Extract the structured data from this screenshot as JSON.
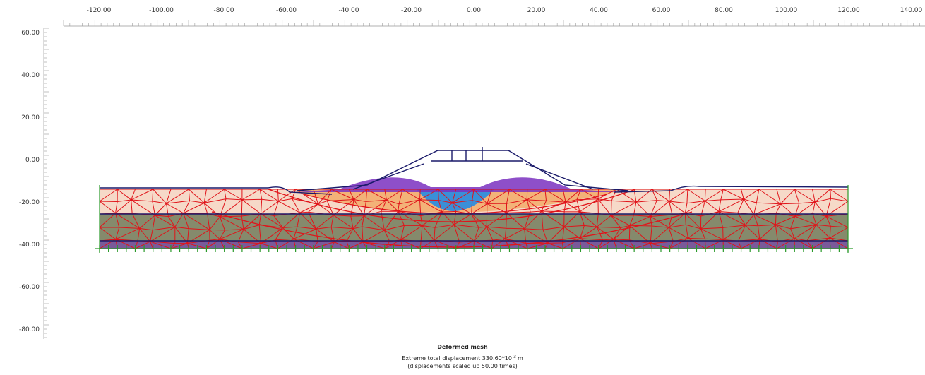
{
  "x_axis": {
    "ticks": [
      "-120.00",
      "-100.00",
      "-80.00",
      "-60.00",
      "-40.00",
      "-20.00",
      "0.00",
      "20.00",
      "40.00",
      "60.00",
      "80.00",
      "100.00",
      "120.00",
      "140.00"
    ]
  },
  "y_axis": {
    "ticks": [
      "60.00",
      "40.00",
      "20.00",
      "0.00",
      "-20.00",
      "-40.00",
      "-60.00",
      "-80.00"
    ]
  },
  "caption": {
    "title": "Deformed mesh",
    "line1": "Extreme total displacement 330.60*10",
    "line1_exponent": "-3",
    "line1_unit": "m",
    "line2": "(displacements scaled up 50.00 times)"
  }
}
